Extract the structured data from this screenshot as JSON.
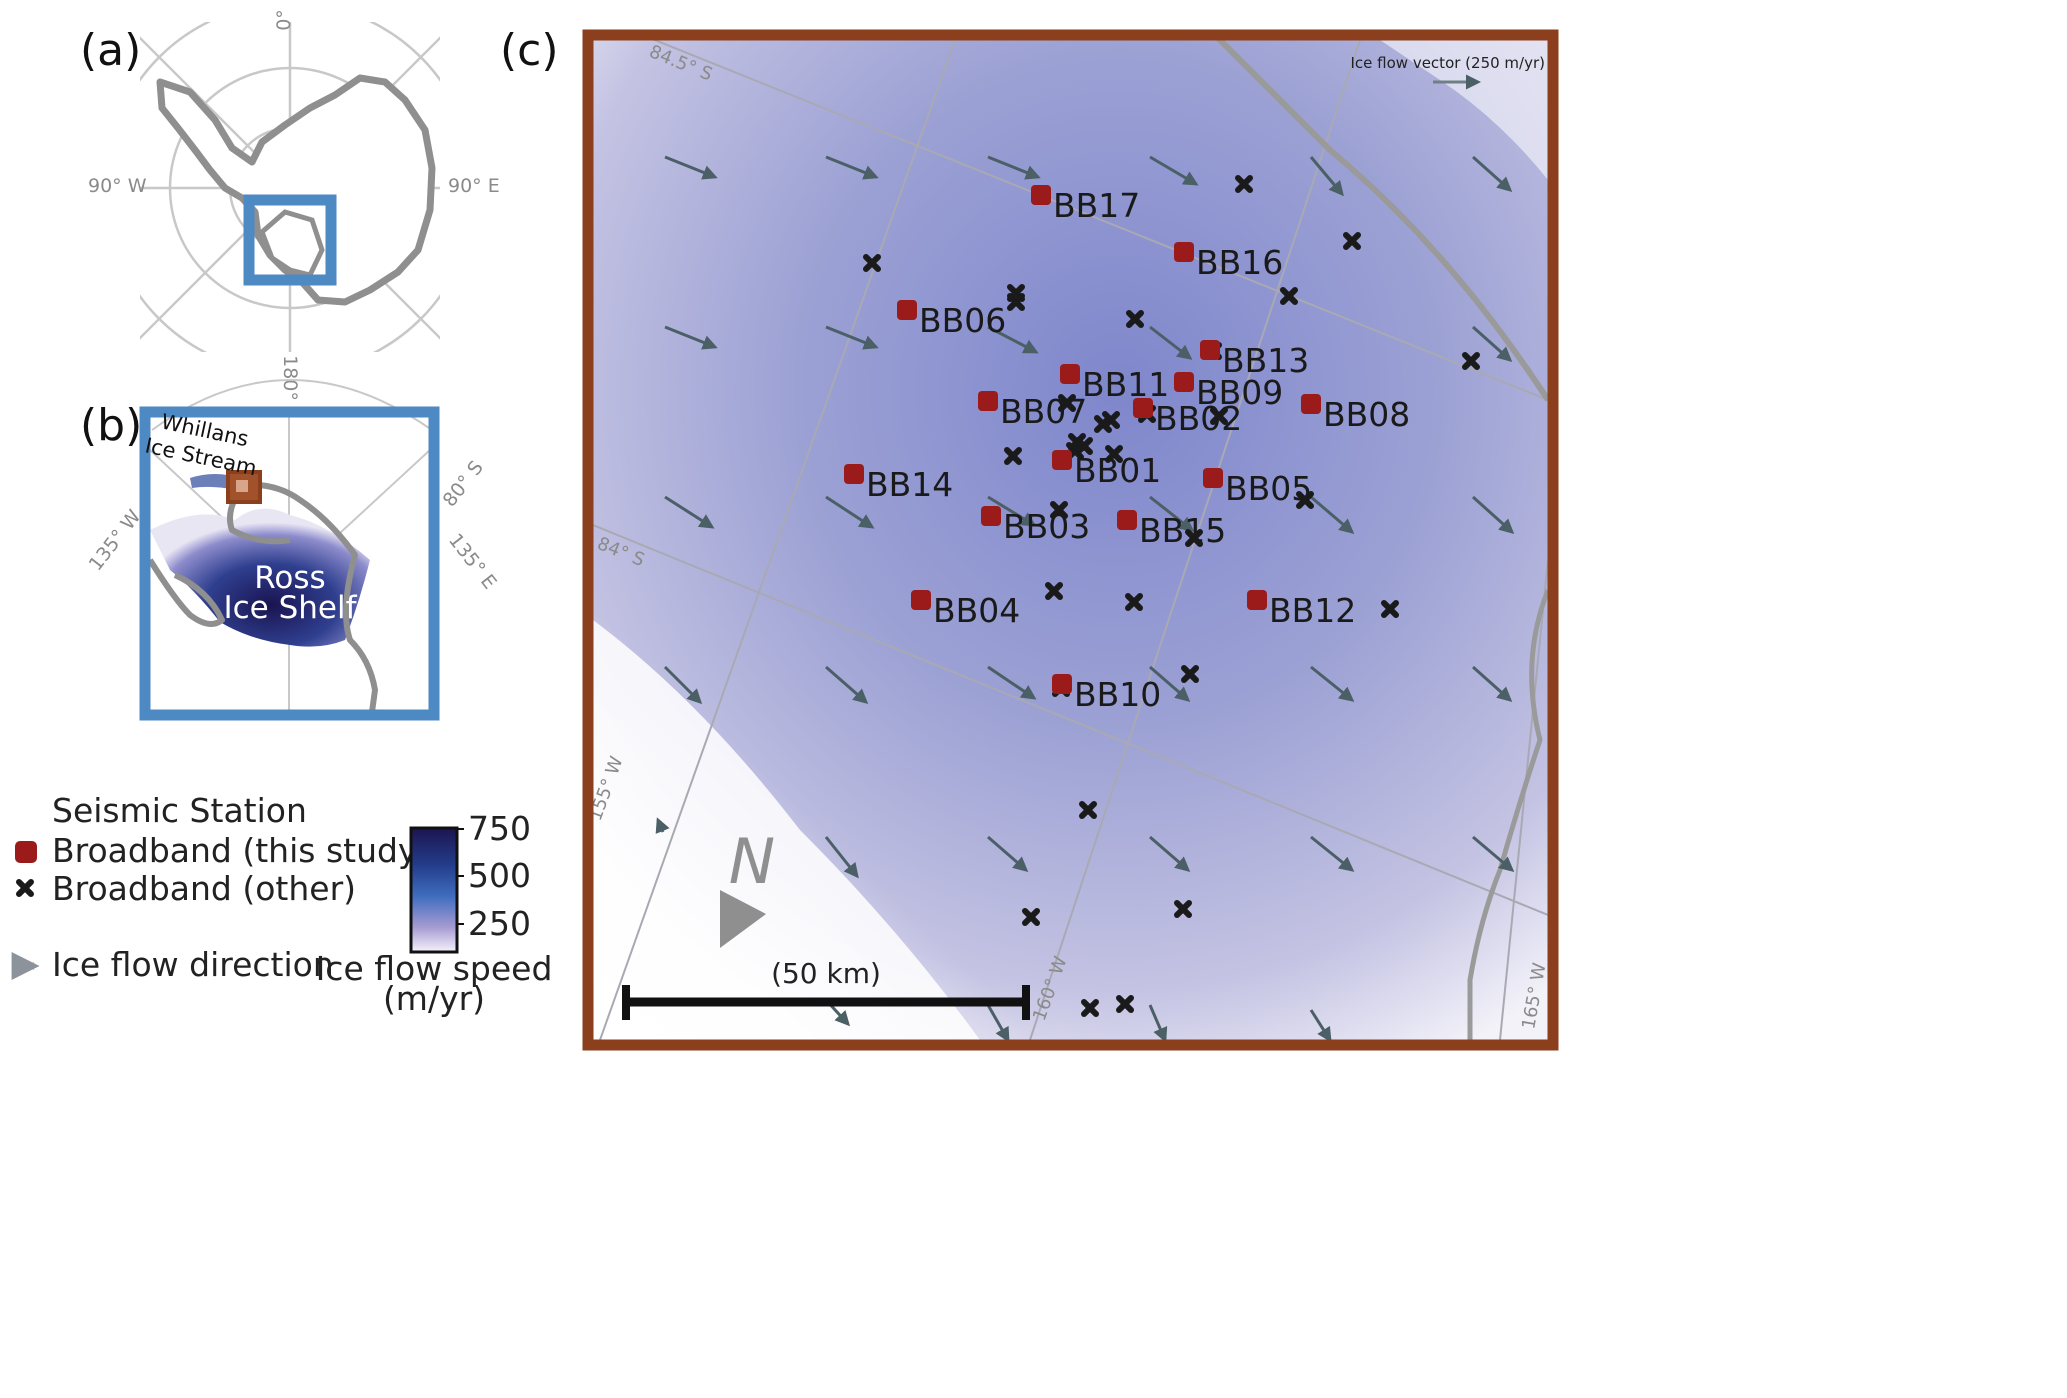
{
  "panels": {
    "a": {
      "label": "(a)",
      "lon_labels": {
        "top": "0°",
        "left": "90° W",
        "right": "90° E",
        "bottom": "180°"
      }
    },
    "b": {
      "label": "(b)",
      "stream_label": "Whillans Ice Stream",
      "shelf_label_line1": "Ross",
      "shelf_label_line2": "Ice Shelf",
      "grid_labels": {
        "lat": "80° S",
        "lon_w": "135° W",
        "lon_e": "135° E"
      }
    },
    "c": {
      "label": "(c)",
      "grid_labels": {
        "lat1": "84.5° S",
        "lat2": "84° S",
        "lon1": "155° W",
        "lon2": "160° W",
        "lon3": "165° W"
      },
      "arrow_legend": "Ice flow vector (250 m/yr)",
      "north": "N",
      "scale_bar": "(50 km)"
    }
  },
  "legend": {
    "title": "Seismic Station",
    "items": [
      {
        "label": "Broadband (this study)",
        "symbol": "red-square-marker",
        "color": "#9b1b1b"
      },
      {
        "label": "Broadband (other)",
        "symbol": "black-x-marker",
        "color": "#1a1a1a"
      },
      {
        "label": "Ice flow direction",
        "symbol": "gray-arrow",
        "color": "#8d939a"
      }
    ]
  },
  "colorbar": {
    "title_line1": "Ice flow speed",
    "title_line2": "(m/yr)",
    "ticks": [
      "750",
      "500",
      "250"
    ]
  },
  "stations": [
    {
      "name": "BB17",
      "mx": 1041,
      "my": 195
    },
    {
      "name": "BB16",
      "mx": 1184,
      "my": 252
    },
    {
      "name": "BB06",
      "mx": 907,
      "my": 310
    },
    {
      "name": "BB13",
      "mx": 1210,
      "my": 350
    },
    {
      "name": "BB11",
      "mx": 1070,
      "my": 374
    },
    {
      "name": "BB09",
      "mx": 1184,
      "my": 382
    },
    {
      "name": "BB07",
      "mx": 988,
      "my": 401
    },
    {
      "name": "BB02",
      "mx": 1143,
      "my": 408
    },
    {
      "name": "BB08",
      "mx": 1311,
      "my": 404
    },
    {
      "name": "BB01",
      "mx": 1062,
      "my": 460
    },
    {
      "name": "BB14",
      "mx": 854,
      "my": 474
    },
    {
      "name": "BB05",
      "mx": 1213,
      "my": 478
    },
    {
      "name": "BB03",
      "mx": 991,
      "my": 516
    },
    {
      "name": "BB15",
      "mx": 1127,
      "my": 520
    },
    {
      "name": "BB04",
      "mx": 921,
      "my": 600
    },
    {
      "name": "BB12",
      "mx": 1257,
      "my": 600
    },
    {
      "name": "BB10",
      "mx": 1062,
      "my": 684
    }
  ],
  "colors": {
    "map_frame": "#8b3f1c",
    "inset_frame": "#4d8ac4",
    "station": "#9b1b1b",
    "arrow": "#4b5f66",
    "grid": "#c2c2c2",
    "coast": "#8f8f8f"
  }
}
